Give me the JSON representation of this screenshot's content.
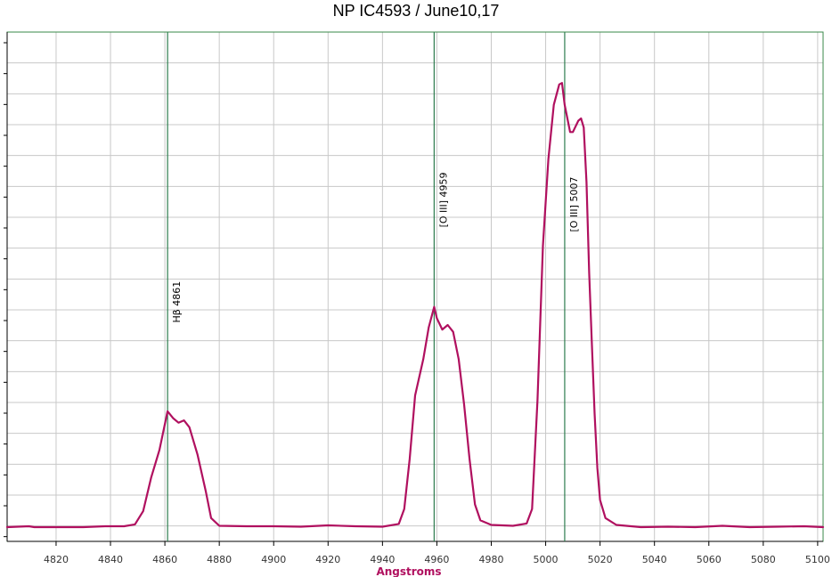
{
  "chart_data": {
    "type": "line",
    "title": "NP IC4593 / June10,17",
    "xlabel": "Angstroms",
    "ylabel": "",
    "xlim": [
      4802,
      5102
    ],
    "ylim": [
      0,
      100
    ],
    "grid": true,
    "x_ticks": [
      4820,
      4840,
      4860,
      4880,
      4900,
      4920,
      4940,
      4960,
      4980,
      5000,
      5020,
      5040,
      5060,
      5080,
      5100
    ],
    "series": [
      {
        "color": "#b0105f",
        "points": [
          [
            4802,
            0.0
          ],
          [
            4810,
            0.2
          ],
          [
            4812,
            0.0
          ],
          [
            4820,
            0.0
          ],
          [
            4830,
            0.0
          ],
          [
            4838,
            0.2
          ],
          [
            4845,
            0.2
          ],
          [
            4849,
            0.6
          ],
          [
            4852,
            3.5
          ],
          [
            4855,
            11.0
          ],
          [
            4858,
            17.0
          ],
          [
            4861,
            25.5
          ],
          [
            4863,
            24.0
          ],
          [
            4865,
            23.0
          ],
          [
            4867,
            23.5
          ],
          [
            4869,
            22.0
          ],
          [
            4872,
            16.0
          ],
          [
            4875,
            8.0
          ],
          [
            4877,
            2.0
          ],
          [
            4880,
            0.3
          ],
          [
            4890,
            0.2
          ],
          [
            4900,
            0.2
          ],
          [
            4910,
            0.1
          ],
          [
            4920,
            0.4
          ],
          [
            4930,
            0.2
          ],
          [
            4940,
            0.1
          ],
          [
            4946,
            0.7
          ],
          [
            4948,
            4.0
          ],
          [
            4950,
            15.0
          ],
          [
            4952,
            29.0
          ],
          [
            4955,
            37.0
          ],
          [
            4957,
            44.0
          ],
          [
            4959,
            48.5
          ],
          [
            4960,
            46.0
          ],
          [
            4962,
            43.5
          ],
          [
            4964,
            44.5
          ],
          [
            4966,
            43.0
          ],
          [
            4968,
            37.0
          ],
          [
            4970,
            27.0
          ],
          [
            4972,
            15.0
          ],
          [
            4974,
            5.0
          ],
          [
            4976,
            1.5
          ],
          [
            4980,
            0.5
          ],
          [
            4988,
            0.3
          ],
          [
            4993,
            0.8
          ],
          [
            4995,
            4.0
          ],
          [
            4997,
            28.0
          ],
          [
            4999,
            62.0
          ],
          [
            5001,
            81.0
          ],
          [
            5003,
            93.0
          ],
          [
            5005,
            97.5
          ],
          [
            5006,
            97.8
          ],
          [
            5007,
            93.0
          ],
          [
            5009,
            87.0
          ],
          [
            5010,
            87.0
          ],
          [
            5012,
            89.5
          ],
          [
            5013,
            90.0
          ],
          [
            5014,
            88.0
          ],
          [
            5015,
            76.0
          ],
          [
            5016,
            56.0
          ],
          [
            5017,
            40.0
          ],
          [
            5018,
            25.0
          ],
          [
            5019,
            13.0
          ],
          [
            5020,
            6.0
          ],
          [
            5022,
            2.0
          ],
          [
            5026,
            0.5
          ],
          [
            5035,
            0.0
          ],
          [
            5045,
            0.1
          ],
          [
            5055,
            0.0
          ],
          [
            5065,
            0.3
          ],
          [
            5075,
            0.0
          ],
          [
            5085,
            0.1
          ],
          [
            5095,
            0.2
          ],
          [
            5102,
            0.0
          ]
        ]
      }
    ],
    "markers": [
      {
        "x": 4861,
        "label": "Hβ 4861",
        "label_y": 45
      },
      {
        "x": 4959,
        "label": "[O III] 4959",
        "label_y": 66
      },
      {
        "x": 5007,
        "label": "[O III] 5007",
        "label_y": 65
      }
    ],
    "colors": {
      "line": "#b0105f",
      "marker": "#2e7d4f",
      "grid": "#c8c8c8",
      "frame": "#3a8a4a",
      "xlabel": "#b0105f"
    }
  }
}
